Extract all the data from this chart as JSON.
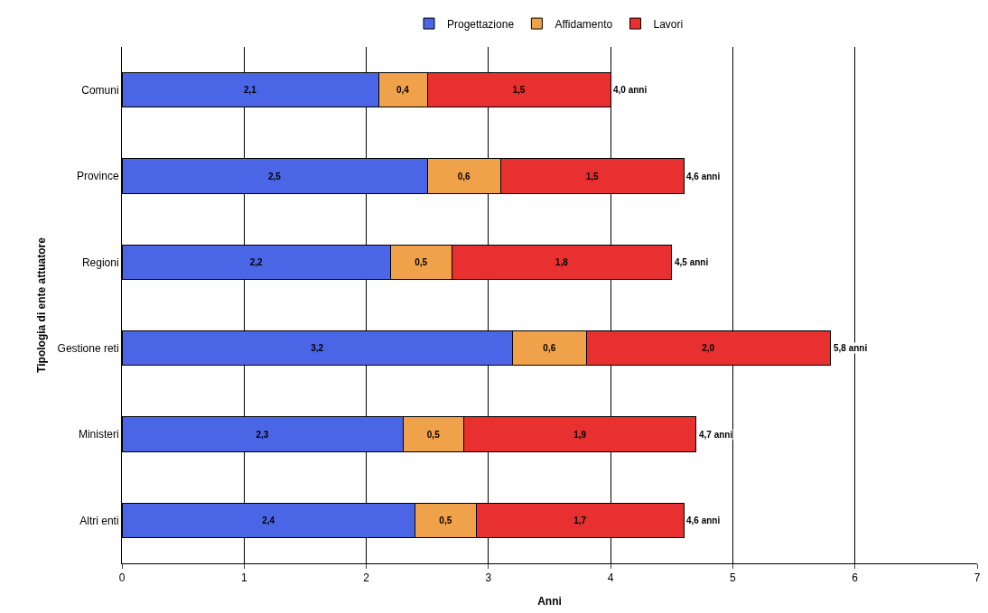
{
  "chart_data": {
    "type": "bar",
    "orientation": "horizontal",
    "stacked": true,
    "xlabel": "Anni",
    "ylabel": "Tipologia di ente attuatore",
    "categories": [
      "Comuni",
      "Province",
      "Regioni",
      "Gestione reti",
      "Ministeri",
      "Altri enti"
    ],
    "series": [
      {
        "name": "Progettazione",
        "color": "#4a66e6",
        "values": [
          2.1,
          2.5,
          2.2,
          3.2,
          2.3,
          2.4
        ],
        "value_labels": [
          "2,1",
          "2,5",
          "2,2",
          "3,2",
          "2,3",
          "2,4"
        ]
      },
      {
        "name": "Affidamento",
        "color": "#f0a24a",
        "values": [
          0.4,
          0.6,
          0.5,
          0.6,
          0.5,
          0.5
        ],
        "value_labels": [
          "0,4",
          "0,6",
          "0,5",
          "0,6",
          "0,5",
          "0,5"
        ]
      },
      {
        "name": "Lavori",
        "color": "#e83030",
        "values": [
          1.5,
          1.5,
          1.8,
          2.0,
          1.9,
          1.7
        ],
        "value_labels": [
          "1,5",
          "1,5",
          "1,8",
          "2,0",
          "1,9",
          "1,7"
        ]
      }
    ],
    "totals": [
      "4,0 anni",
      "4,6 anni",
      "4,5 anni",
      "5,8 anni",
      "4,7 anni",
      "4,6 anni"
    ],
    "xlim": [
      0,
      7
    ],
    "xticks": [
      0,
      1,
      2,
      3,
      4,
      5,
      6,
      7
    ],
    "grid": "x",
    "legend": "top"
  }
}
